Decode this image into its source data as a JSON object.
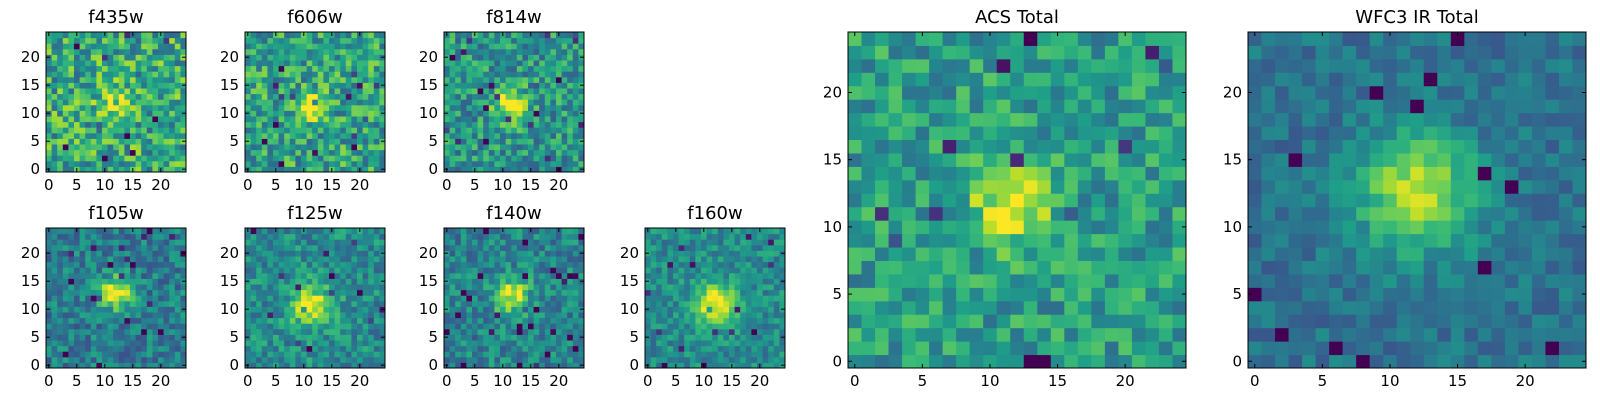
{
  "chart_data": {
    "type": "heatmap",
    "colormap": "viridis",
    "panels": [
      {
        "title": "f435w",
        "x_ticks": [
          0,
          5,
          10,
          15,
          20
        ],
        "y_ticks": [
          0,
          5,
          10,
          15,
          20
        ],
        "xlim": [
          0,
          25
        ],
        "ylim": [
          0,
          25
        ],
        "grid_size": [
          25,
          25
        ],
        "center": [
          12,
          12
        ],
        "peak_width": 2.2,
        "peak_height": 0.25,
        "noise": 0.55,
        "base": 0.6,
        "seed": 11
      },
      {
        "title": "f606w",
        "x_ticks": [
          0,
          5,
          10,
          15,
          20
        ],
        "y_ticks": [
          0,
          5,
          10,
          15,
          20
        ],
        "xlim": [
          0,
          25
        ],
        "ylim": [
          0,
          25
        ],
        "grid_size": [
          25,
          25
        ],
        "center": [
          11,
          11.5
        ],
        "peak_width": 1.8,
        "peak_height": 0.45,
        "noise": 0.5,
        "base": 0.58,
        "seed": 23
      },
      {
        "title": "f814w",
        "x_ticks": [
          0,
          5,
          10,
          15,
          20
        ],
        "y_ticks": [
          0,
          5,
          10,
          15,
          20
        ],
        "xlim": [
          0,
          25
        ],
        "ylim": [
          0,
          25
        ],
        "grid_size": [
          25,
          25
        ],
        "center": [
          11.5,
          11.5
        ],
        "peak_width": 2.0,
        "peak_height": 0.55,
        "noise": 0.45,
        "base": 0.52,
        "seed": 37
      },
      {
        "title": "f105w",
        "x_ticks": [
          0,
          5,
          10,
          15,
          20
        ],
        "y_ticks": [
          0,
          5,
          10,
          15,
          20
        ],
        "xlim": [
          0,
          25
        ],
        "ylim": [
          0,
          25
        ],
        "grid_size": [
          25,
          25
        ],
        "center": [
          12,
          13
        ],
        "peak_width": 2.0,
        "peak_height": 0.6,
        "noise": 0.35,
        "base": 0.42,
        "seed": 41
      },
      {
        "title": "f125w",
        "x_ticks": [
          0,
          5,
          10,
          15,
          20
        ],
        "y_ticks": [
          0,
          5,
          10,
          15,
          20
        ],
        "xlim": [
          0,
          25
        ],
        "ylim": [
          0,
          25
        ],
        "grid_size": [
          25,
          25
        ],
        "center": [
          11.5,
          10.5
        ],
        "peak_width": 2.6,
        "peak_height": 0.5,
        "noise": 0.35,
        "base": 0.48,
        "seed": 53
      },
      {
        "title": "f140w",
        "x_ticks": [
          0,
          5,
          10,
          15,
          20
        ],
        "y_ticks": [
          0,
          5,
          10,
          15,
          20
        ],
        "xlim": [
          0,
          25
        ],
        "ylim": [
          0,
          25
        ],
        "grid_size": [
          25,
          25
        ],
        "center": [
          11.5,
          12.5
        ],
        "peak_width": 2.2,
        "peak_height": 0.5,
        "noise": 0.35,
        "base": 0.45,
        "seed": 67
      },
      {
        "title": "f160w",
        "x_ticks": [
          0,
          5,
          10,
          15,
          20
        ],
        "y_ticks": [
          0,
          5,
          10,
          15,
          20
        ],
        "xlim": [
          0,
          25
        ],
        "ylim": [
          0,
          25
        ],
        "grid_size": [
          25,
          25
        ],
        "center": [
          12,
          11
        ],
        "peak_width": 2.6,
        "peak_height": 0.55,
        "noise": 0.3,
        "base": 0.48,
        "seed": 79
      },
      {
        "title": "ACS Total",
        "x_ticks": [
          0,
          5,
          10,
          15,
          20
        ],
        "y_ticks": [
          0,
          5,
          10,
          15,
          20
        ],
        "xlim": [
          0,
          25
        ],
        "ylim": [
          0,
          25
        ],
        "grid_size": [
          25,
          25
        ],
        "center": [
          11.5,
          11.5
        ],
        "peak_width": 1.9,
        "peak_height": 0.5,
        "noise": 0.38,
        "base": 0.55,
        "seed": 97
      },
      {
        "title": "WFC3 IR Total",
        "x_ticks": [
          0,
          5,
          10,
          15,
          20
        ],
        "y_ticks": [
          0,
          5,
          10,
          15,
          20
        ],
        "xlim": [
          0,
          25
        ],
        "ylim": [
          0,
          25
        ],
        "grid_size": [
          25,
          25
        ],
        "center": [
          12,
          12.5
        ],
        "peak_width": 3.0,
        "peak_height": 0.55,
        "noise": 0.22,
        "base": 0.38,
        "seed": 113
      }
    ]
  }
}
